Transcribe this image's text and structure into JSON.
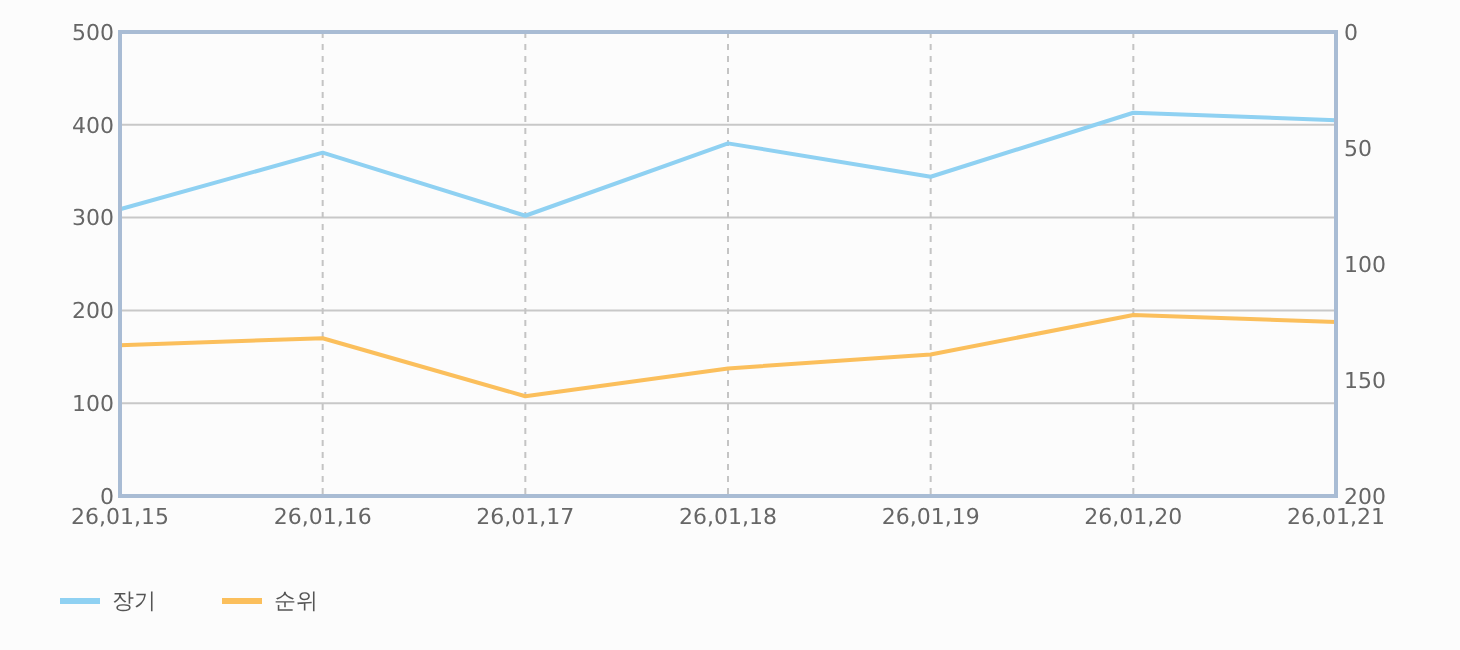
{
  "chart_data": {
    "type": "line",
    "categories": [
      "26,01,15",
      "26,01,16",
      "26,01,17",
      "26,01,18",
      "26,01,19",
      "26,01,20",
      "26,01,21"
    ],
    "series": [
      {
        "name": "장기",
        "color": "#8fd1f2",
        "values": [
          309,
          370,
          302,
          380,
          344,
          413,
          405
        ]
      },
      {
        "name": "순위",
        "color": "#fbbf5c",
        "axis": "y2",
        "values": [
          135,
          132,
          157,
          145,
          139,
          122,
          125
        ]
      }
    ],
    "ylim": [
      0,
      500
    ],
    "yticks": [
      0,
      100,
      200,
      300,
      400,
      500
    ],
    "y2lim": [
      200,
      0
    ],
    "y2ticks": [
      0,
      50,
      100,
      150,
      200
    ],
    "grid": true,
    "legend": "bottom left",
    "marker": "none",
    "line_style": "solid"
  }
}
